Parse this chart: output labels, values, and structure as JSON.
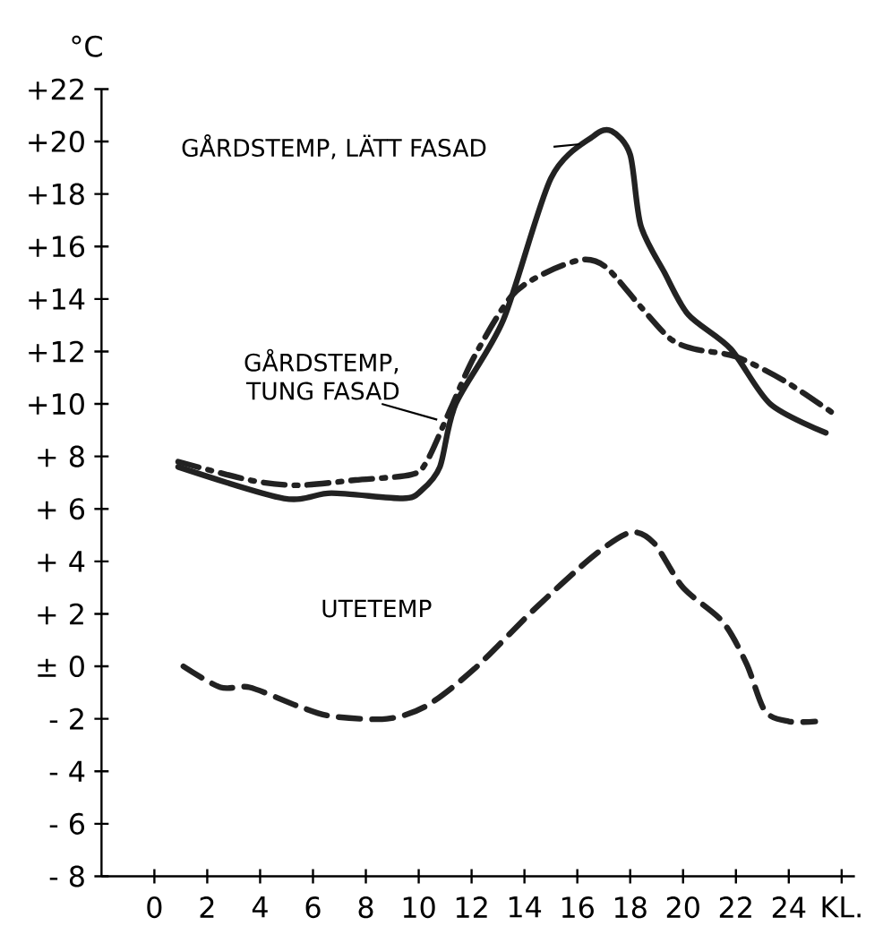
{
  "chart_data": {
    "type": "line",
    "ylabel": "°C",
    "xlim": [
      -2,
      26.5
    ],
    "ylim": [
      -8,
      22
    ],
    "xticks": [
      0,
      2,
      4,
      6,
      8,
      10,
      12,
      14,
      16,
      18,
      20,
      22,
      24,
      {
        "value": 26,
        "label": "KL."
      }
    ],
    "yticks": [
      {
        "value": -8,
        "label": "- 8"
      },
      {
        "value": -6,
        "label": "- 6"
      },
      {
        "value": -4,
        "label": "- 4"
      },
      {
        "value": -2,
        "label": "- 2"
      },
      {
        "value": 0,
        "label": "± 0"
      },
      {
        "value": 2,
        "label": "+ 2"
      },
      {
        "value": 4,
        "label": "+ 4"
      },
      {
        "value": 6,
        "label": "+ 6"
      },
      {
        "value": 8,
        "label": "+ 8"
      },
      {
        "value": 10,
        "label": "+10"
      },
      {
        "value": 12,
        "label": "+12"
      },
      {
        "value": 14,
        "label": "+14"
      },
      {
        "value": 16,
        "label": "+16"
      },
      {
        "value": 18,
        "label": "+18"
      },
      {
        "value": 20,
        "label": "+20"
      },
      {
        "value": 22,
        "label": "+22"
      }
    ],
    "grid": false,
    "marker": "none",
    "series": [
      {
        "name": "GÅRDSTEMP, LÄTT FASAD",
        "color": "#222222",
        "line_style": "solid",
        "x": [
          0.9,
          4.9,
          6.7,
          9.4,
          10.1,
          10.8,
          11.4,
          13.2,
          15.0,
          16.6,
          17.3,
          18.0,
          18.4,
          19.3,
          20.2,
          21.8,
          23.3,
          25.4
        ],
        "values": [
          7.6,
          6.4,
          6.6,
          6.4,
          6.7,
          7.6,
          10.0,
          13.2,
          18.6,
          20.2,
          20.4,
          19.5,
          16.8,
          15.0,
          13.4,
          12.1,
          10.0,
          8.9
        ]
      },
      {
        "name": "GÅRDSTEMP, TUNG FASAD",
        "color": "#222222",
        "line_style": "dashdot",
        "x": [
          0.9,
          3.6,
          5.4,
          7.6,
          9.7,
          10.3,
          11.2,
          12.1,
          13.5,
          14.8,
          16.2,
          17.1,
          18.4,
          19.5,
          20.4,
          22.0,
          23.8,
          25.6
        ],
        "values": [
          7.8,
          7.1,
          6.9,
          7.1,
          7.3,
          7.8,
          9.8,
          11.8,
          14.1,
          15.0,
          15.5,
          15.2,
          13.7,
          12.5,
          12.1,
          11.8,
          10.9,
          9.7
        ]
      },
      {
        "name": "UTETEMP",
        "color": "#222222",
        "line_style": "dashed",
        "x": [
          1.1,
          2.5,
          3.6,
          5.4,
          6.7,
          8.8,
          10.3,
          12.1,
          14.4,
          16.6,
          18.0,
          18.9,
          20.0,
          21.5,
          22.4,
          23.1,
          24.0,
          25.0
        ],
        "values": [
          0.0,
          -0.8,
          -0.8,
          -1.5,
          -1.9,
          -2.0,
          -1.5,
          -0.1,
          2.2,
          4.2,
          5.1,
          4.7,
          3.0,
          1.7,
          0.1,
          -1.7,
          -2.1,
          -2.1
        ]
      }
    ]
  }
}
